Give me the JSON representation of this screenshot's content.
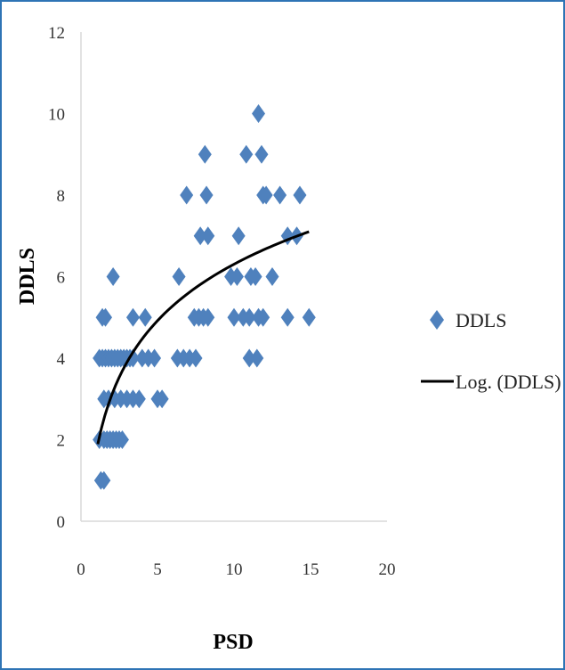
{
  "colors": {
    "marker": "#4f81bd",
    "trendline": "#000000",
    "frame": "#2e74b5",
    "axis": "#d9d9d9"
  },
  "chart_data": {
    "type": "scatter",
    "xlabel": "PSD",
    "ylabel": "DDLS",
    "xlim": [
      0,
      20
    ],
    "ylim": [
      0,
      12
    ],
    "xticks": [
      "0",
      "5",
      "10",
      "15",
      "20"
    ],
    "yticks": [
      "0",
      "2",
      "4",
      "6",
      "8",
      "10",
      "12"
    ],
    "grid": false,
    "legend_position": "right",
    "series": [
      {
        "name": "DDLS",
        "marker": "diamond",
        "points": [
          [
            1.3,
            1
          ],
          [
            1.5,
            1
          ],
          [
            1.2,
            2
          ],
          [
            1.5,
            2
          ],
          [
            1.7,
            2
          ],
          [
            1.9,
            2
          ],
          [
            2.1,
            2
          ],
          [
            2.3,
            2
          ],
          [
            2.5,
            2
          ],
          [
            2.7,
            2
          ],
          [
            1.5,
            3
          ],
          [
            1.8,
            3
          ],
          [
            2.2,
            3
          ],
          [
            2.6,
            3
          ],
          [
            3.0,
            3
          ],
          [
            3.4,
            3
          ],
          [
            3.8,
            3
          ],
          [
            5.0,
            3
          ],
          [
            5.3,
            3
          ],
          [
            1.2,
            4
          ],
          [
            1.4,
            4
          ],
          [
            1.6,
            4
          ],
          [
            1.8,
            4
          ],
          [
            2.0,
            4
          ],
          [
            2.2,
            4
          ],
          [
            2.4,
            4
          ],
          [
            2.6,
            4
          ],
          [
            2.8,
            4
          ],
          [
            3.0,
            4
          ],
          [
            3.2,
            4
          ],
          [
            3.4,
            4
          ],
          [
            4.0,
            4
          ],
          [
            4.4,
            4
          ],
          [
            4.8,
            4
          ],
          [
            6.3,
            4
          ],
          [
            6.7,
            4
          ],
          [
            7.1,
            4
          ],
          [
            7.5,
            4
          ],
          [
            11.0,
            4
          ],
          [
            11.5,
            4
          ],
          [
            1.4,
            5
          ],
          [
            1.6,
            5
          ],
          [
            3.4,
            5
          ],
          [
            4.2,
            5
          ],
          [
            7.4,
            5
          ],
          [
            7.7,
            5
          ],
          [
            8.0,
            5
          ],
          [
            8.3,
            5
          ],
          [
            10.0,
            5
          ],
          [
            10.6,
            5
          ],
          [
            11.0,
            5
          ],
          [
            11.6,
            5
          ],
          [
            11.9,
            5
          ],
          [
            13.5,
            5
          ],
          [
            14.9,
            5
          ],
          [
            2.1,
            6
          ],
          [
            6.4,
            6
          ],
          [
            9.8,
            6
          ],
          [
            10.2,
            6
          ],
          [
            11.1,
            6
          ],
          [
            11.4,
            6
          ],
          [
            12.5,
            6
          ],
          [
            7.8,
            7
          ],
          [
            8.3,
            7
          ],
          [
            10.3,
            7
          ],
          [
            13.5,
            7
          ],
          [
            14.1,
            7
          ],
          [
            6.9,
            8
          ],
          [
            8.2,
            8
          ],
          [
            11.9,
            8
          ],
          [
            12.1,
            8
          ],
          [
            13.0,
            8
          ],
          [
            14.3,
            8
          ],
          [
            8.1,
            9
          ],
          [
            10.8,
            9
          ],
          [
            11.8,
            9
          ],
          [
            11.6,
            10
          ]
        ]
      },
      {
        "name": "Log. (DDLS)",
        "type": "line",
        "trend": "logarithmic",
        "coefficients": {
          "a": 1.7,
          "b": 2.0
        },
        "x_range": [
          1.1,
          14.9
        ]
      }
    ]
  }
}
